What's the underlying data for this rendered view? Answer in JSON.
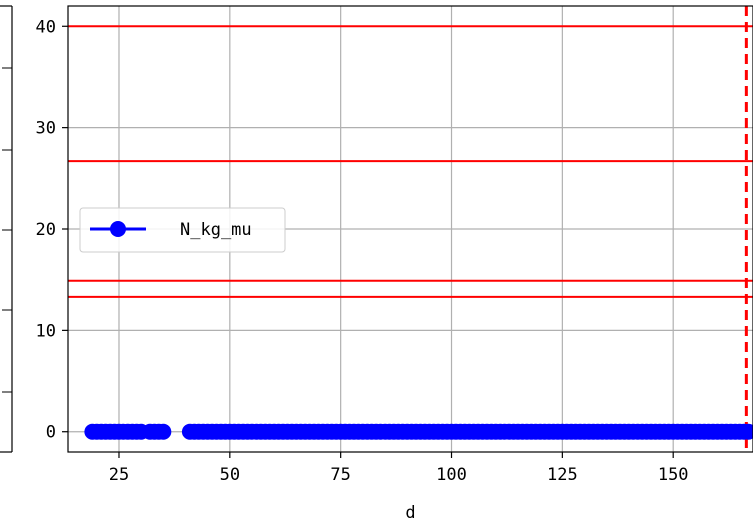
{
  "chart_data": {
    "type": "line",
    "xlabel": "d",
    "ylabel": "",
    "xlim": [
      13.5,
      168
    ],
    "ylim": [
      -2,
      42
    ],
    "xticks": [
      25,
      50,
      75,
      100,
      125,
      150
    ],
    "yticks": [
      0,
      10,
      20,
      30,
      40
    ],
    "grid": true,
    "legend": {
      "placement": "center-left",
      "entries": [
        "N_kg_mu"
      ]
    },
    "series": [
      {
        "name": "N_kg_mu",
        "color": "#0000ff",
        "marker": "circle",
        "segments": [
          {
            "x_start": 19,
            "x_end": 30,
            "y": 0
          },
          {
            "x_start": 32,
            "x_end": 35,
            "y": 0
          },
          {
            "x_start": 41,
            "x_end": 167,
            "y": 0
          }
        ]
      }
    ],
    "reference_lines": {
      "horizontal": {
        "color": "#ff0000",
        "style": "solid",
        "y": [
          40,
          26.7,
          14.9,
          13.3
        ]
      },
      "vertical": {
        "color": "#ff0000",
        "style": "dashed",
        "x": [
          166.5
        ]
      }
    }
  },
  "colors": {
    "series": "#0000ff",
    "reference": "#ff0000",
    "grid": "#b0b0b0",
    "axes": "#000000"
  }
}
